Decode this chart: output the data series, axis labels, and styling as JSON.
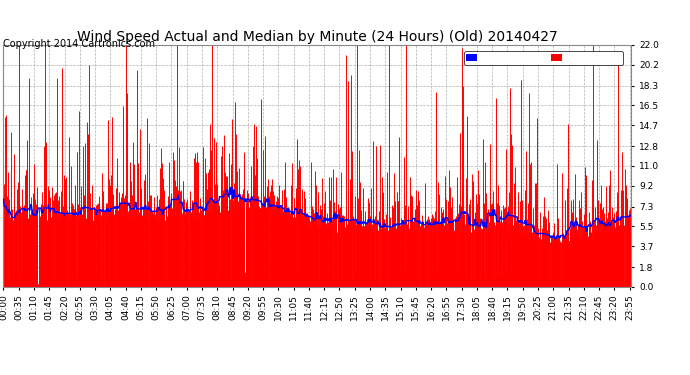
{
  "title": "Wind Speed Actual and Median by Minute (24 Hours) (Old) 20140427",
  "copyright": "Copyright 2014 Cartronics.com",
  "yticks": [
    0.0,
    1.8,
    3.7,
    5.5,
    7.3,
    9.2,
    11.0,
    12.8,
    14.7,
    16.5,
    18.3,
    20.2,
    22.0
  ],
  "ylim": [
    0.0,
    22.0
  ],
  "bg_color": "#ffffff",
  "plot_bg_color": "#ffffff",
  "grid_color": "#b0b0b0",
  "wind_color": "#ff0000",
  "median_color": "#0000ff",
  "title_fontsize": 10,
  "copyright_fontsize": 7,
  "tick_fontsize": 6.5,
  "legend_fontsize": 7,
  "xtick_interval_minutes": 35,
  "total_minutes": 1440,
  "seed": 42
}
